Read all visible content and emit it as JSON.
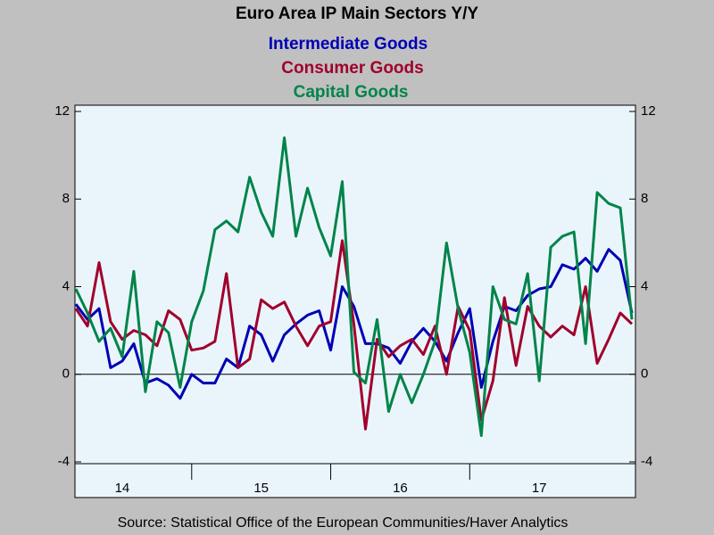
{
  "chart_data": {
    "type": "line",
    "title": "Euro Area IP Main Sectors Y/Y",
    "source": "Source:  Statistical Office of the European Communities/Haver Analytics",
    "categories": [
      null,
      null,
      null,
      null,
      "14",
      null,
      null,
      null,
      null,
      null,
      null,
      null,
      null,
      null,
      null,
      null,
      "15",
      null,
      null,
      null,
      null,
      null,
      null,
      null,
      null,
      null,
      null,
      null,
      "16",
      null,
      null,
      null,
      null,
      null,
      null,
      null,
      null,
      null,
      null,
      null,
      "17",
      null,
      null,
      null,
      null,
      null,
      null,
      null,
      null
    ],
    "series": [
      {
        "name": "Intermediate Goods",
        "color": "#0000b4",
        "values": [
          3.2,
          2.5,
          3.0,
          0.3,
          0.6,
          1.4,
          -0.4,
          -0.2,
          -0.5,
          -1.1,
          0.0,
          -0.4,
          -0.4,
          0.7,
          0.3,
          2.2,
          1.8,
          0.6,
          1.8,
          2.3,
          2.7,
          2.9,
          1.1,
          4.0,
          3.1,
          1.4,
          1.4,
          1.2,
          0.5,
          1.5,
          2.1,
          1.5,
          0.6,
          1.9,
          3.0,
          -0.6,
          1.5,
          3.1,
          2.9,
          3.6,
          3.9,
          4.0,
          5.0,
          4.8,
          5.3,
          4.7,
          5.7,
          5.2,
          2.8
        ]
      },
      {
        "name": "Consumer Goods",
        "color": "#a0002c",
        "values": [
          3.0,
          2.2,
          5.1,
          2.4,
          1.6,
          2.0,
          1.8,
          1.3,
          2.9,
          2.5,
          1.1,
          1.2,
          1.5,
          4.6,
          0.3,
          0.7,
          3.4,
          3.0,
          3.3,
          2.2,
          1.3,
          2.2,
          2.4,
          6.1,
          2.3,
          -2.5,
          1.6,
          0.8,
          1.3,
          1.6,
          0.9,
          2.2,
          0.0,
          3.1,
          2.0,
          -2.1,
          -0.3,
          3.5,
          0.4,
          3.1,
          2.2,
          1.7,
          2.2,
          1.8,
          4.0,
          0.5,
          1.6,
          2.8,
          2.3
        ]
      },
      {
        "name": "Capital Goods",
        "color": "#00844a",
        "values": [
          3.9,
          2.8,
          1.5,
          2.1,
          0.8,
          4.7,
          -0.8,
          2.4,
          1.9,
          -0.6,
          2.4,
          3.8,
          6.6,
          7.0,
          6.5,
          9.0,
          7.4,
          6.3,
          10.8,
          6.3,
          8.5,
          6.7,
          5.4,
          8.8,
          0.1,
          -0.4,
          2.5,
          -1.7,
          0.0,
          -1.3,
          0.0,
          1.5,
          6.0,
          3.0,
          1.0,
          -2.8,
          4.0,
          2.5,
          2.3,
          4.6,
          -0.3,
          5.8,
          6.3,
          6.5,
          1.4,
          8.3,
          7.8,
          7.6,
          2.5
        ]
      }
    ],
    "ylim": [
      -4,
      12
    ],
    "yticks": [
      -4,
      0,
      4,
      8,
      12
    ],
    "y2lim": [
      -4,
      12
    ],
    "y2ticks": [
      -4,
      0,
      4,
      8,
      12
    ]
  }
}
